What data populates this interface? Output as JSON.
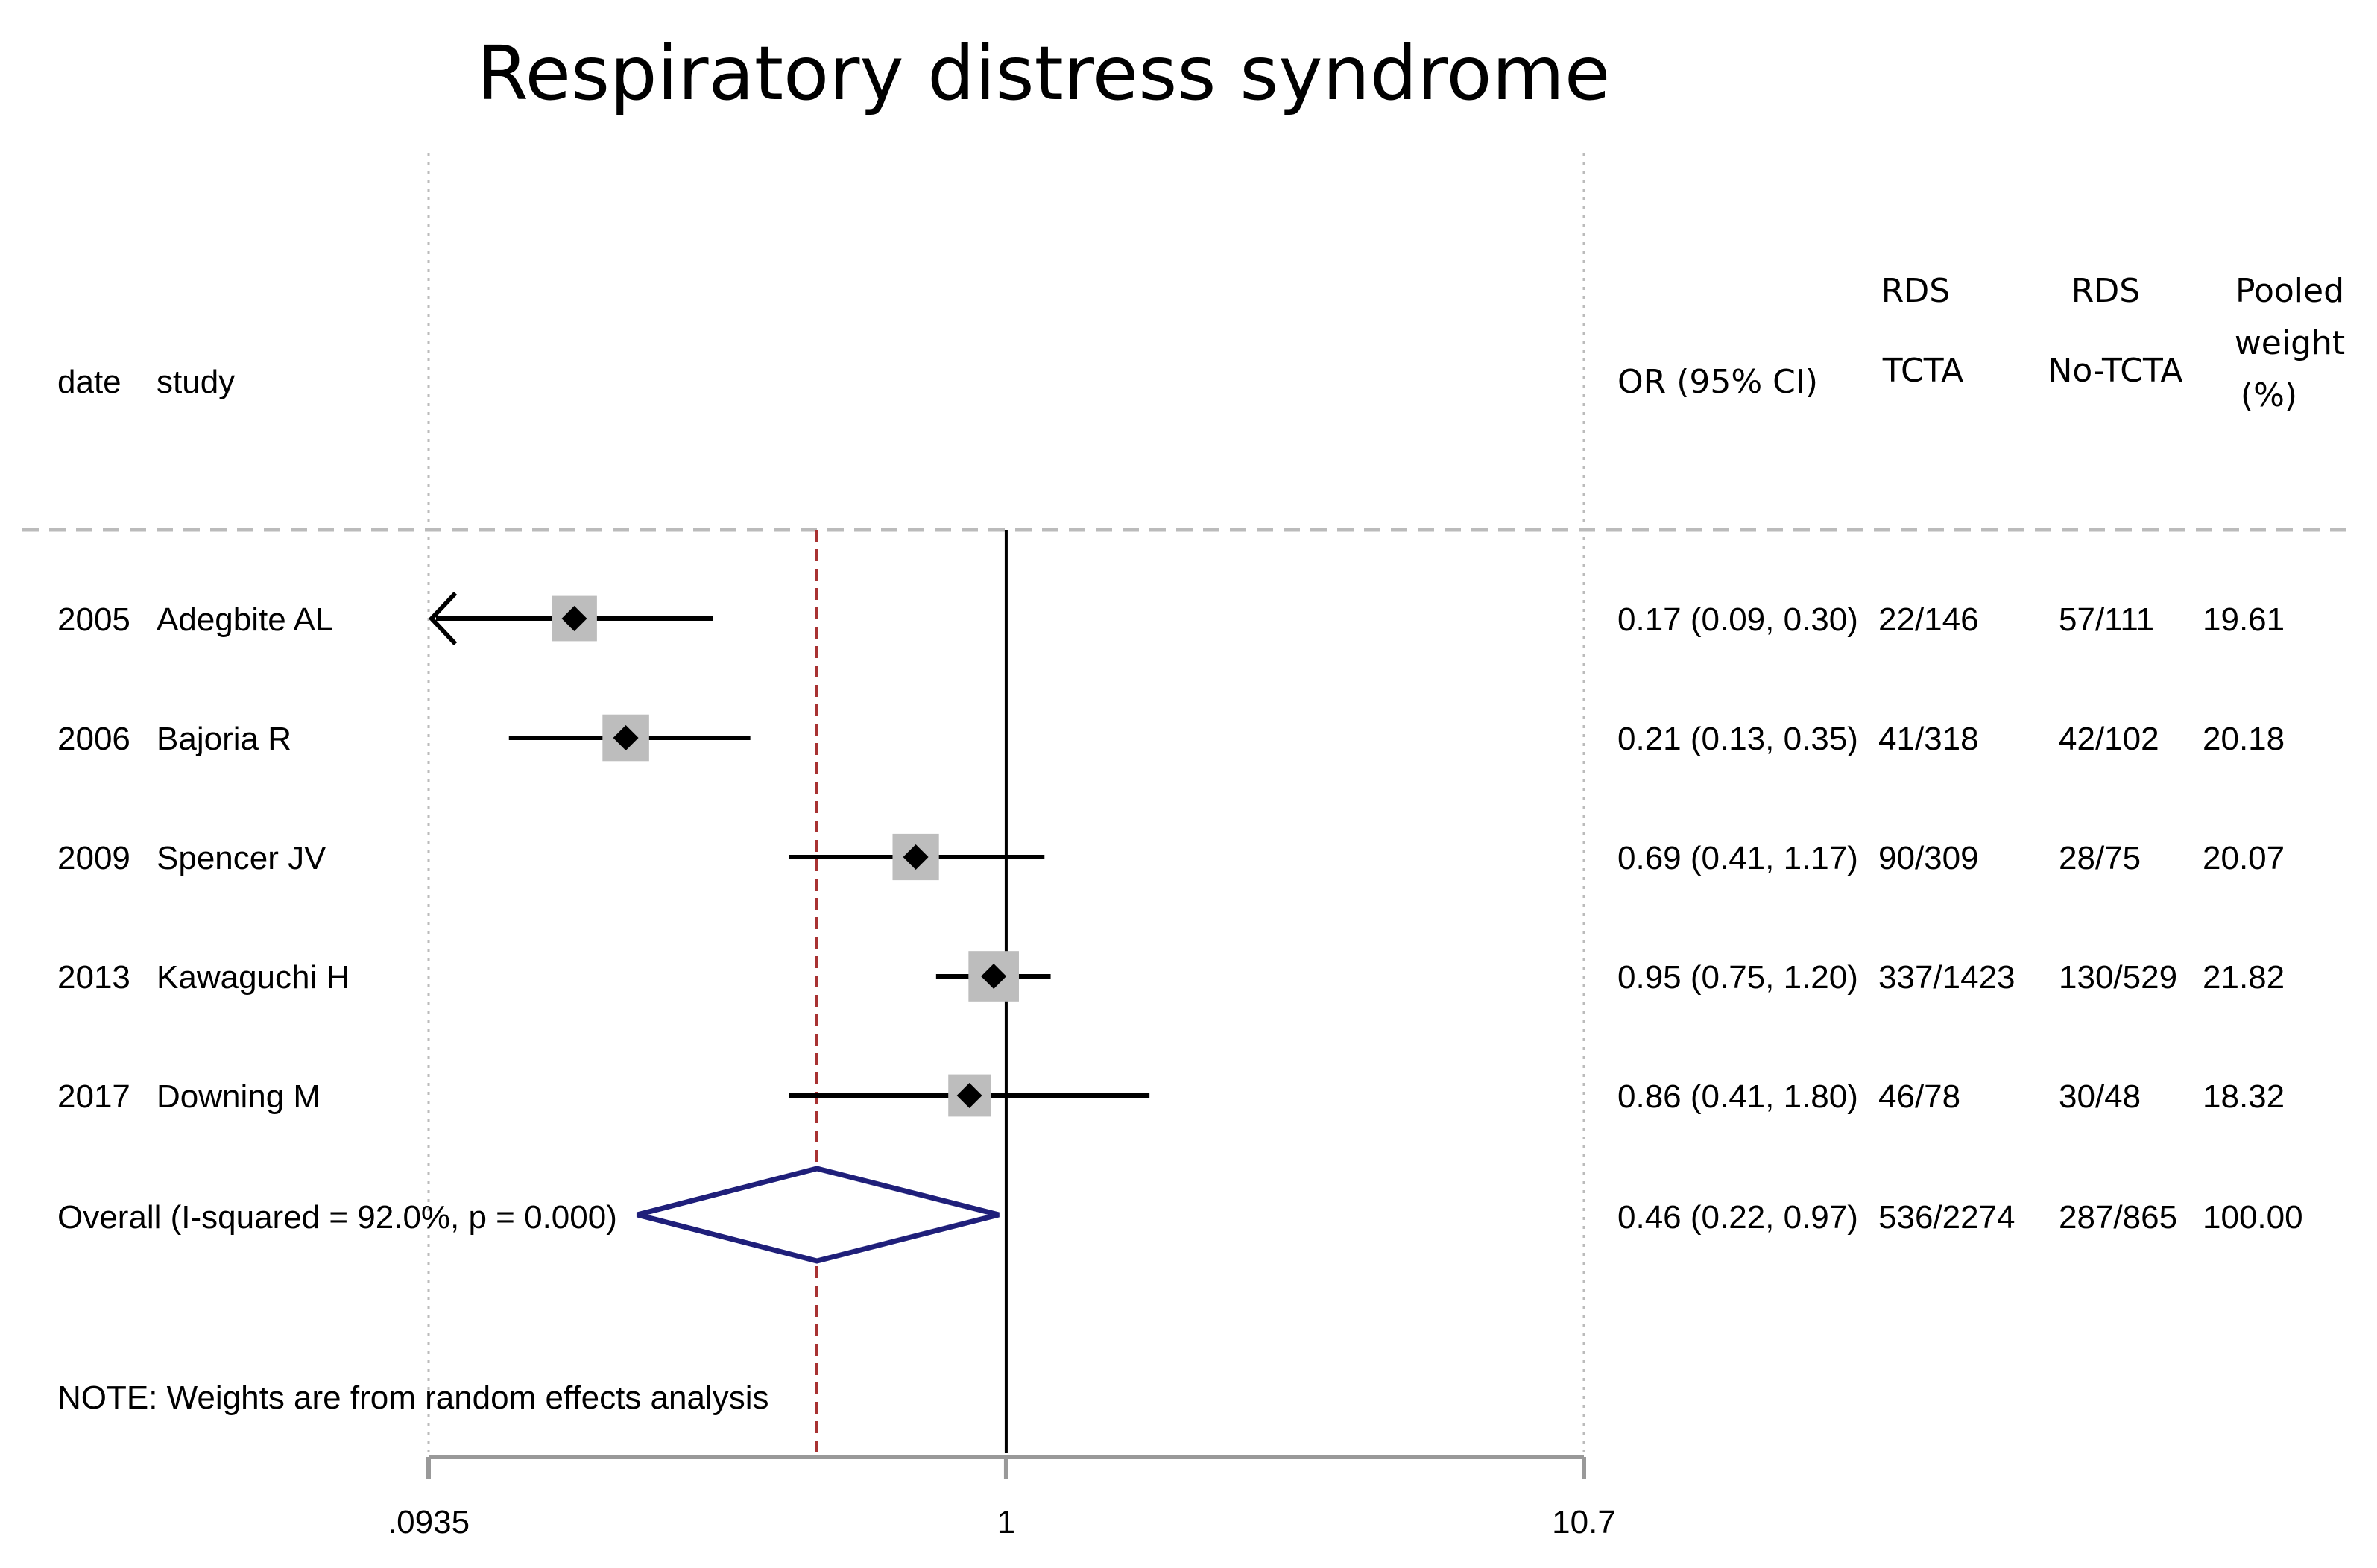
{
  "chart_data": {
    "type": "forest",
    "title": "Respiratory distress syndrome",
    "x_scale": "log",
    "xlim": [
      0.0935,
      10.7
    ],
    "x_ticks": [
      ".0935",
      "1",
      "10.7"
    ],
    "reference_line": 1,
    "overall_line": 0.46,
    "headers": {
      "date": "date",
      "study": "study",
      "or": "OR (95% CI)",
      "tcta_line1": "RDS",
      "tcta_line2": "TCTA",
      "notcta_line1": "RDS",
      "notcta_line2": "No-TCTA",
      "weight_line1": "Pooled",
      "weight_line2": "weight",
      "weight_line3": "(%)"
    },
    "studies": [
      {
        "date": "2005",
        "study": "Adegbite AL",
        "or": 0.17,
        "lo": 0.09,
        "hi": 0.3,
        "or_text": "0.17 (0.09, 0.30)",
        "tcta": "22/146",
        "notcta": "57/111",
        "weight": "19.61",
        "weight_value": 19.61,
        "arrow_left": true
      },
      {
        "date": "2006",
        "study": "Bajoria R",
        "or": 0.21,
        "lo": 0.13,
        "hi": 0.35,
        "or_text": "0.21 (0.13, 0.35)",
        "tcta": "41/318",
        "notcta": "42/102",
        "weight": "20.18",
        "weight_value": 20.18,
        "arrow_left": false
      },
      {
        "date": "2009",
        "study": "Spencer JV",
        "or": 0.69,
        "lo": 0.41,
        "hi": 1.17,
        "or_text": "0.69 (0.41, 1.17)",
        "tcta": "90/309",
        "notcta": "28/75",
        "weight": "20.07",
        "weight_value": 20.07,
        "arrow_left": false
      },
      {
        "date": "2013",
        "study": "Kawaguchi H",
        "or": 0.95,
        "lo": 0.75,
        "hi": 1.2,
        "or_text": "0.95 (0.75, 1.20)",
        "tcta": "337/1423",
        "notcta": "130/529",
        "weight": "21.82",
        "weight_value": 21.82,
        "arrow_left": false
      },
      {
        "date": "2017",
        "study": "Downing M",
        "or": 0.86,
        "lo": 0.41,
        "hi": 1.8,
        "or_text": "0.86 (0.41, 1.80)",
        "tcta": "46/78",
        "notcta": "30/48",
        "weight": "18.32",
        "weight_value": 18.32,
        "arrow_left": false
      }
    ],
    "overall": {
      "label": "Overall  (I-squared = 92.0%, p = 0.000)",
      "or": 0.46,
      "lo": 0.22,
      "hi": 0.97,
      "or_text": "0.46 (0.22, 0.97)",
      "tcta": "536/2274",
      "notcta": "287/865",
      "weight": "100.00"
    },
    "note": "NOTE: Weights are from random effects analysis",
    "colors": {
      "box": "#bdbdbd",
      "point": "#000000",
      "ci": "#000000",
      "diamond": "#1f1f7a",
      "overall_line": "#a83232",
      "reference_line": "#000000",
      "grid": "#bbbbbb",
      "axis": "#999999"
    }
  }
}
